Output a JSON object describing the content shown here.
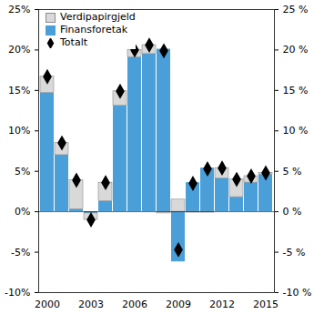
{
  "chart_data": {
    "type": "bar",
    "stacked": true,
    "categories": [
      "2000",
      null,
      null,
      "2003",
      null,
      null,
      "2006",
      null,
      null,
      "2009",
      null,
      null,
      "2012",
      null,
      null,
      "2015"
    ],
    "series": [
      {
        "name": "Verdipapirgjeld",
        "type": "bar",
        "color": "#d9d9d9",
        "values": [
          2.0,
          1.5,
          3.6,
          -0.8,
          2.3,
          1.8,
          0.9,
          1.1,
          -0.2,
          1.5,
          -0.1,
          -0.1,
          1.3,
          2.2,
          0.8,
          0.2
        ]
      },
      {
        "name": "Finansforetak",
        "type": "bar",
        "color": "#4a9fd8",
        "values": [
          14.7,
          7.0,
          0.3,
          -0.2,
          1.3,
          13.1,
          19.1,
          19.5,
          20.1,
          -6.2,
          3.6,
          5.4,
          4.1,
          1.8,
          3.6,
          4.6
        ]
      },
      {
        "name": "Totalt",
        "type": "scatter",
        "marker": "diamond",
        "color": "#000000",
        "values": [
          16.7,
          8.5,
          3.9,
          -1.0,
          3.6,
          14.9,
          20.0,
          20.6,
          19.9,
          -4.7,
          3.5,
          5.3,
          5.4,
          4.0,
          4.4,
          4.8
        ]
      }
    ],
    "ylim": [
      -10,
      25
    ],
    "yticks": [
      {
        "value": -10,
        "label": "-10%"
      },
      {
        "value": -5,
        "label": "-5%"
      },
      {
        "value": 0,
        "label": "0%"
      },
      {
        "value": 5,
        "label": "5%"
      },
      {
        "value": 10,
        "label": "10%"
      },
      {
        "value": 15,
        "label": "15%"
      },
      {
        "value": 20,
        "label": "20%"
      },
      {
        "value": 25,
        "label": "25%"
      }
    ],
    "y2lim": [
      -10,
      25
    ],
    "y2ticks": [
      {
        "value": -10,
        "label": "-10 %"
      },
      {
        "value": -5,
        "label": "-5 %"
      },
      {
        "value": 0,
        "label": "0 %"
      },
      {
        "value": 5,
        "label": "5 %"
      },
      {
        "value": 10,
        "label": "10 %"
      },
      {
        "value": 15,
        "label": "15 %"
      },
      {
        "value": 20,
        "label": "20 %"
      },
      {
        "value": 25,
        "label": "25 %"
      }
    ],
    "legend": "top-left",
    "grid": false
  }
}
